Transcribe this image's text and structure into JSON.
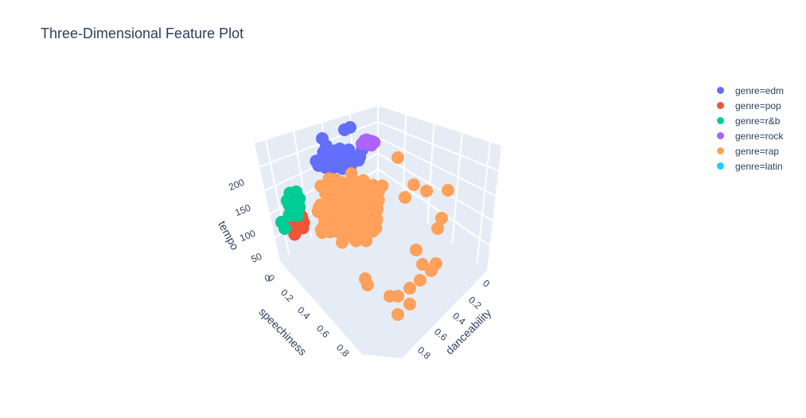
{
  "chart_data": {
    "type": "scatter",
    "title": "Three-Dimensional Feature Plot",
    "axes": {
      "x": {
        "label": "danceability",
        "ticks": [
          "0",
          "0.2",
          "0.4",
          "0.6",
          "0.8"
        ]
      },
      "y": {
        "label": "speechiness",
        "ticks": [
          "0",
          "0.2",
          "0.4",
          "0.6",
          "0.8"
        ]
      },
      "z": {
        "label": "tempo",
        "ticks": [
          "0",
          "50",
          "100",
          "150",
          "200"
        ]
      }
    },
    "legend_placement": "top-right",
    "series": [
      {
        "name": "genre=edm",
        "color": "#636efa",
        "label": "genre=edm"
      },
      {
        "name": "genre=pop",
        "color": "#ef553b",
        "label": "genre=pop"
      },
      {
        "name": "genre=r&b",
        "color": "#00cc96",
        "label": "genre=r&b"
      },
      {
        "name": "genre=rock",
        "color": "#ab63fa",
        "label": "genre=rock"
      },
      {
        "name": "genre=rap",
        "color": "#ffa15a",
        "label": "genre=rap"
      },
      {
        "name": "genre=latin",
        "color": "#19d3f3",
        "label": "genre=latin"
      }
    ]
  }
}
